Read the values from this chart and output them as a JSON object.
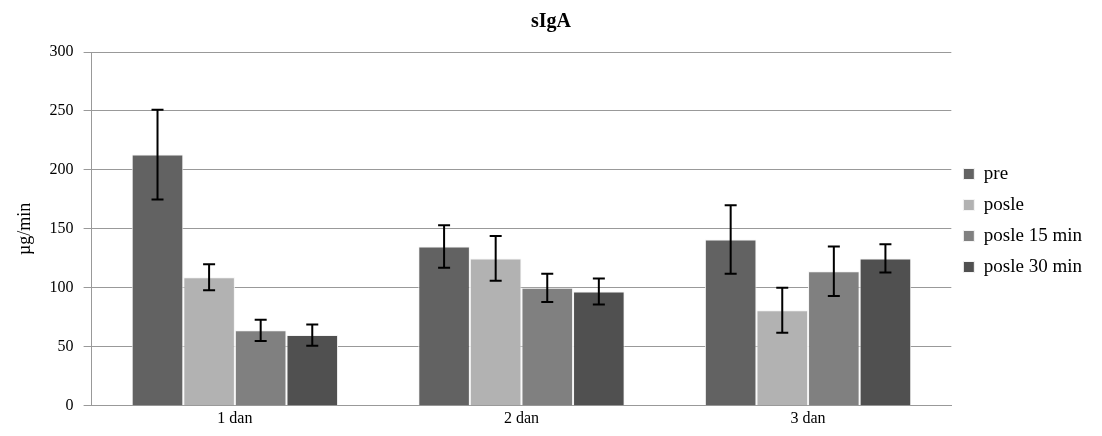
{
  "chart_data": {
    "type": "bar",
    "title": "sIgA",
    "ylabel": "µg/min",
    "categories": [
      "1 dan",
      "2 dan",
      "3 dan"
    ],
    "series": [
      {
        "name": "pre",
        "color": "#626262",
        "values": [
          213,
          135,
          141
        ],
        "errors": [
          38,
          18,
          29
        ]
      },
      {
        "name": "posle",
        "color": "#b2b2b2",
        "values": [
          109,
          125,
          81
        ],
        "errors": [
          11,
          19,
          19
        ]
      },
      {
        "name": "posle 15 min",
        "color": "#808080",
        "values": [
          64,
          100,
          114
        ],
        "errors": [
          9,
          12,
          21
        ]
      },
      {
        "name": "posle 30 min",
        "color": "#505050",
        "values": [
          60,
          97,
          125
        ],
        "errors": [
          9,
          11,
          12
        ]
      }
    ],
    "ylim": [
      0,
      300
    ],
    "yticks": [
      0,
      50,
      100,
      150,
      200,
      250,
      300
    ],
    "grid": "y",
    "legend": "right"
  }
}
